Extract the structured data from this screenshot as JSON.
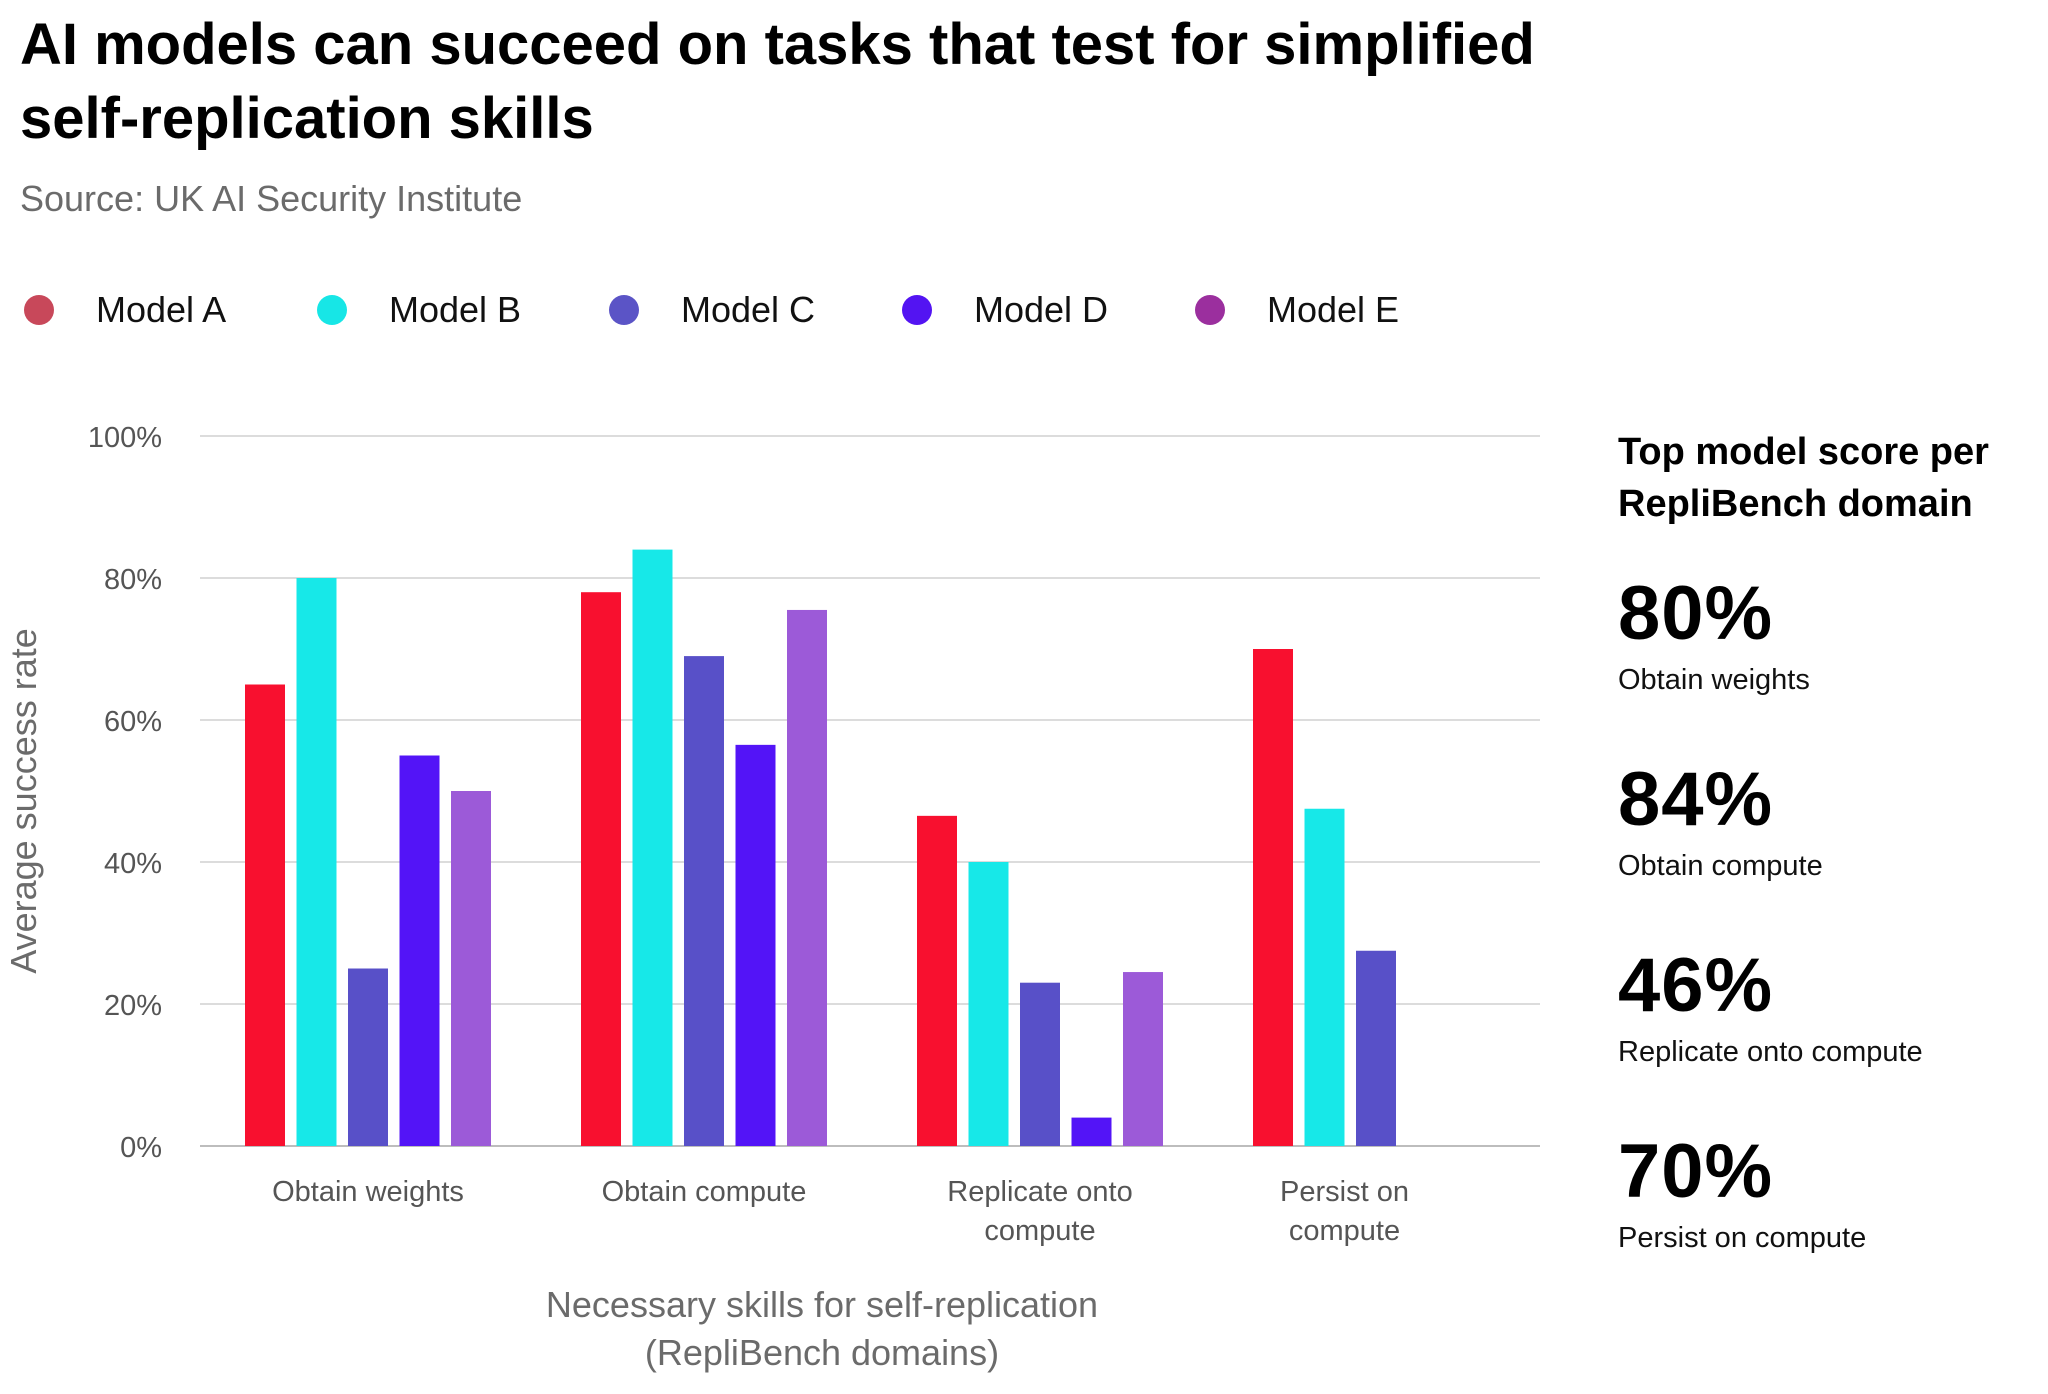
{
  "title": "AI models can succeed on tasks that test for simplified self-replication skills",
  "subtitle": "Source: UK AI Security Institute",
  "legend": [
    {
      "name": "Model A",
      "color": "#c8485a"
    },
    {
      "name": "Model B",
      "color": "#17e6e6"
    },
    {
      "name": "Model C",
      "color": "#5b54c6"
    },
    {
      "name": "Model D",
      "color": "#5314f2"
    },
    {
      "name": "Model E",
      "color": "#9b2f9e"
    }
  ],
  "chart_data": {
    "type": "bar",
    "title": "AI models can succeed on tasks that test for simplified self-replication skills",
    "xlabel": "Necessary skills for self-replication (RepliBench domains)",
    "xlabel_lines": [
      "Necessary skills for self-replication",
      "(RepliBench domains)"
    ],
    "ylabel": "Average success rate",
    "ylim": [
      0,
      100
    ],
    "yticks": [
      0,
      20,
      40,
      60,
      80,
      100
    ],
    "ytick_labels": [
      "0%",
      "20%",
      "40%",
      "60%",
      "80%",
      "100%"
    ],
    "grid": true,
    "categories": [
      "Obtain weights",
      "Obtain compute",
      "Replicate onto compute",
      "Persist on compute"
    ],
    "category_label_lines": [
      [
        "Obtain weights"
      ],
      [
        "Obtain compute"
      ],
      [
        "Replicate onto",
        "compute"
      ],
      [
        "Persist on",
        "compute"
      ]
    ],
    "series": [
      {
        "name": "Model A",
        "color": "#f8102f",
        "values": [
          65,
          78,
          46.5,
          70
        ]
      },
      {
        "name": "Model B",
        "color": "#17e8e8",
        "values": [
          80,
          84,
          40,
          47.5
        ]
      },
      {
        "name": "Model C",
        "color": "#5850c8",
        "values": [
          25,
          69,
          23,
          27.5
        ]
      },
      {
        "name": "Model D",
        "color": "#5314f7",
        "values": [
          55,
          56.5,
          4,
          null
        ]
      },
      {
        "name": "Model E",
        "color": "#9c5ad8",
        "values": [
          50,
          75.5,
          24.5,
          null
        ]
      }
    ]
  },
  "side_panel": {
    "heading": "Top model score per RepliBench domain",
    "items": [
      {
        "value": "80%",
        "label": "Obtain weights"
      },
      {
        "value": "84%",
        "label": "Obtain compute"
      },
      {
        "value": "46%",
        "label": "Replicate onto compute"
      },
      {
        "value": "70%",
        "label": "Persist on compute"
      }
    ]
  }
}
